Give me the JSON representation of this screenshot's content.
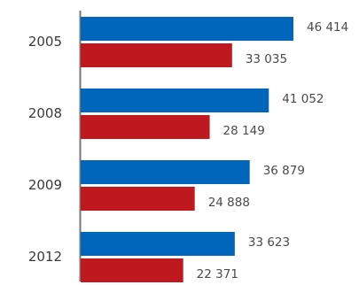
{
  "chart_data": {
    "type": "bar",
    "orientation": "horizontal",
    "categories": [
      "2005",
      "2008",
      "2009",
      "2012"
    ],
    "series": [
      {
        "values": [
          46414,
          41052,
          36879,
          33623
        ],
        "labels": [
          "46 414",
          "41 052",
          "36 879",
          "33 623"
        ],
        "color": "#0066bb"
      },
      {
        "values": [
          33035,
          28149,
          24888,
          22371
        ],
        "labels": [
          "33 035",
          "28 149",
          "24 888",
          "22 371"
        ],
        "color": "#c0181f"
      }
    ],
    "xlim": [
      0,
      46414
    ],
    "grid": false,
    "legend": "none"
  }
}
